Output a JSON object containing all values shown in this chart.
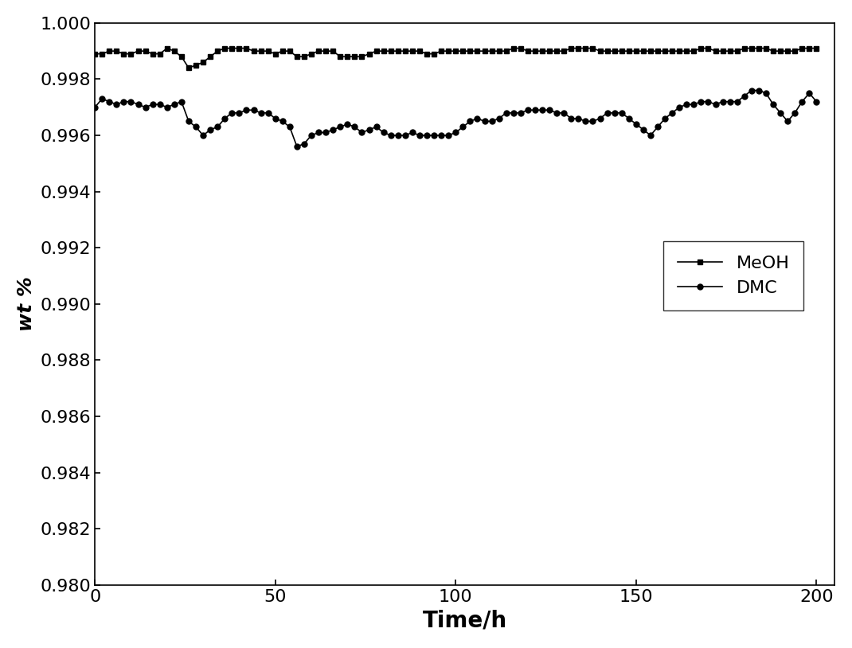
{
  "meoh_x": [
    0,
    2,
    4,
    6,
    8,
    10,
    12,
    14,
    16,
    18,
    20,
    22,
    24,
    26,
    28,
    30,
    32,
    34,
    36,
    38,
    40,
    42,
    44,
    46,
    48,
    50,
    52,
    54,
    56,
    58,
    60,
    62,
    64,
    66,
    68,
    70,
    72,
    74,
    76,
    78,
    80,
    82,
    84,
    86,
    88,
    90,
    92,
    94,
    96,
    98,
    100,
    102,
    104,
    106,
    108,
    110,
    112,
    114,
    116,
    118,
    120,
    122,
    124,
    126,
    128,
    130,
    132,
    134,
    136,
    138,
    140,
    142,
    144,
    146,
    148,
    150,
    152,
    154,
    156,
    158,
    160,
    162,
    164,
    166,
    168,
    170,
    172,
    174,
    176,
    178,
    180,
    182,
    184,
    186,
    188,
    190,
    192,
    194,
    196,
    198,
    200
  ],
  "meoh_y": [
    0.9989,
    0.9989,
    0.999,
    0.999,
    0.9989,
    0.9989,
    0.999,
    0.999,
    0.9989,
    0.9989,
    0.9991,
    0.999,
    0.9988,
    0.9984,
    0.9985,
    0.9986,
    0.9988,
    0.999,
    0.9991,
    0.9991,
    0.9991,
    0.9991,
    0.999,
    0.999,
    0.999,
    0.9989,
    0.999,
    0.999,
    0.9988,
    0.9988,
    0.9989,
    0.999,
    0.999,
    0.999,
    0.9988,
    0.9988,
    0.9988,
    0.9988,
    0.9989,
    0.999,
    0.999,
    0.999,
    0.999,
    0.999,
    0.999,
    0.999,
    0.9989,
    0.9989,
    0.999,
    0.999,
    0.999,
    0.999,
    0.999,
    0.999,
    0.999,
    0.999,
    0.999,
    0.999,
    0.9991,
    0.9991,
    0.999,
    0.999,
    0.999,
    0.999,
    0.999,
    0.999,
    0.9991,
    0.9991,
    0.9991,
    0.9991,
    0.999,
    0.999,
    0.999,
    0.999,
    0.999,
    0.999,
    0.999,
    0.999,
    0.999,
    0.999,
    0.999,
    0.999,
    0.999,
    0.999,
    0.9991,
    0.9991,
    0.999,
    0.999,
    0.999,
    0.999,
    0.9991,
    0.9991,
    0.9991,
    0.9991,
    0.999,
    0.999,
    0.999,
    0.999,
    0.9991,
    0.9991,
    0.9991
  ],
  "dmc_x": [
    0,
    2,
    4,
    6,
    8,
    10,
    12,
    14,
    16,
    18,
    20,
    22,
    24,
    26,
    28,
    30,
    32,
    34,
    36,
    38,
    40,
    42,
    44,
    46,
    48,
    50,
    52,
    54,
    56,
    58,
    60,
    62,
    64,
    66,
    68,
    70,
    72,
    74,
    76,
    78,
    80,
    82,
    84,
    86,
    88,
    90,
    92,
    94,
    96,
    98,
    100,
    102,
    104,
    106,
    108,
    110,
    112,
    114,
    116,
    118,
    120,
    122,
    124,
    126,
    128,
    130,
    132,
    134,
    136,
    138,
    140,
    142,
    144,
    146,
    148,
    150,
    152,
    154,
    156,
    158,
    160,
    162,
    164,
    166,
    168,
    170,
    172,
    174,
    176,
    178,
    180,
    182,
    184,
    186,
    188,
    190,
    192,
    194,
    196,
    198,
    200
  ],
  "dmc_y": [
    0.997,
    0.9973,
    0.9972,
    0.9971,
    0.9972,
    0.9972,
    0.9971,
    0.997,
    0.9971,
    0.9971,
    0.997,
    0.9971,
    0.9972,
    0.9965,
    0.9963,
    0.996,
    0.9962,
    0.9963,
    0.9966,
    0.9968,
    0.9968,
    0.9969,
    0.9969,
    0.9968,
    0.9968,
    0.9966,
    0.9965,
    0.9963,
    0.9956,
    0.9957,
    0.996,
    0.9961,
    0.9961,
    0.9962,
    0.9963,
    0.9964,
    0.9963,
    0.9961,
    0.9962,
    0.9963,
    0.9961,
    0.996,
    0.996,
    0.996,
    0.9961,
    0.996,
    0.996,
    0.996,
    0.996,
    0.996,
    0.9961,
    0.9963,
    0.9965,
    0.9966,
    0.9965,
    0.9965,
    0.9966,
    0.9968,
    0.9968,
    0.9968,
    0.9969,
    0.9969,
    0.9969,
    0.9969,
    0.9968,
    0.9968,
    0.9966,
    0.9966,
    0.9965,
    0.9965,
    0.9966,
    0.9968,
    0.9968,
    0.9968,
    0.9966,
    0.9964,
    0.9962,
    0.996,
    0.9963,
    0.9966,
    0.9968,
    0.997,
    0.9971,
    0.9971,
    0.9972,
    0.9972,
    0.9971,
    0.9972,
    0.9972,
    0.9972,
    0.9974,
    0.9976,
    0.9976,
    0.9975,
    0.9971,
    0.9968,
    0.9965,
    0.9968,
    0.9972,
    0.9975,
    0.9972
  ],
  "xlabel": "Time/h",
  "ylabel": "wt %",
  "xlim": [
    0,
    205
  ],
  "ylim": [
    0.98,
    1.0
  ],
  "yticks": [
    0.98,
    0.982,
    0.984,
    0.986,
    0.988,
    0.99,
    0.992,
    0.994,
    0.996,
    0.998,
    1.0
  ],
  "xticks": [
    0,
    50,
    100,
    150,
    200
  ],
  "line_color": "#000000",
  "bg_color": "#ffffff",
  "legend_labels": [
    "MeOH",
    "DMC"
  ],
  "xlabel_fontsize": 20,
  "ylabel_fontsize": 18,
  "tick_fontsize": 16,
  "legend_fontsize": 16
}
